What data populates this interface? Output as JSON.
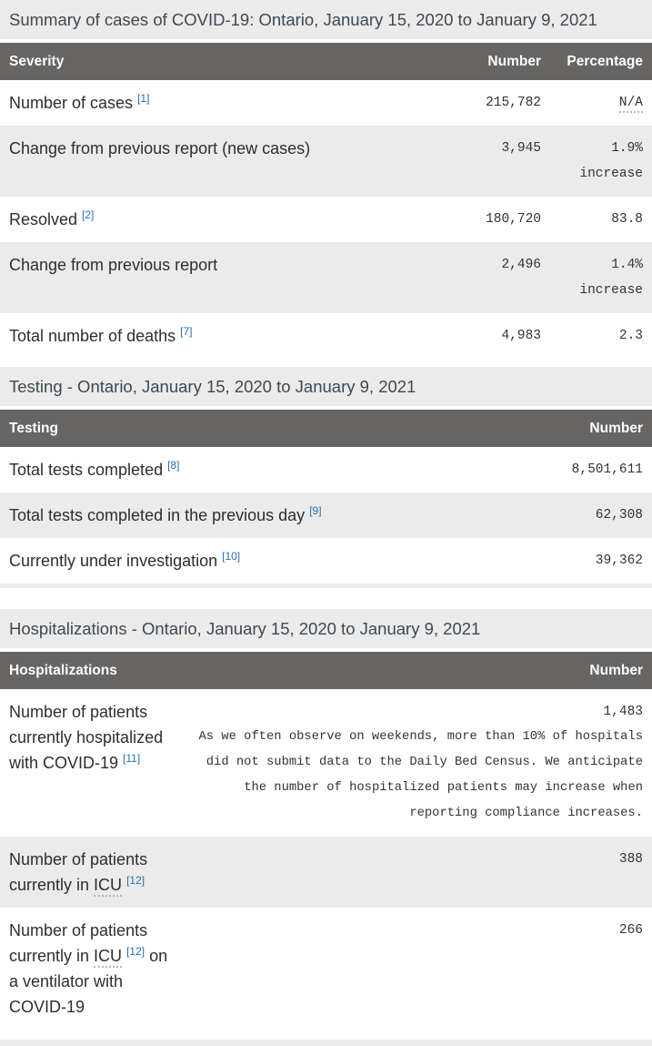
{
  "colors": {
    "header_bg": "#666564",
    "stripe_bg": "#ebebeb",
    "link_blue": "#2b6daf",
    "title_text": "#3d4953",
    "body_text": "#2e2e2e"
  },
  "sections": [
    {
      "id": "summary",
      "title": "Summary of cases of COVID-19: Ontario, January 15, 2020 to January 9, 2021",
      "header": {
        "label": "Severity",
        "columns": [
          "Number",
          "Percentage"
        ]
      },
      "columns": 3,
      "rows": [
        {
          "label": [
            {
              "text": "Number of cases "
            },
            {
              "sup": "[1]"
            }
          ],
          "number": "215,782",
          "percentage": {
            "value": "N/A",
            "abbr": true
          }
        },
        {
          "label": [
            {
              "text": "Change from previous report (new cases)"
            }
          ],
          "number": "3,945",
          "percentage": {
            "value": "1.9%",
            "sub": "increase"
          }
        },
        {
          "label": [
            {
              "text": "Resolved "
            },
            {
              "sup": "[2]"
            }
          ],
          "number": "180,720",
          "percentage": {
            "value": "83.8"
          }
        },
        {
          "label": [
            {
              "text": "Change from previous report"
            }
          ],
          "number": "2,496",
          "percentage": {
            "value": "1.4%",
            "sub": "increase"
          }
        },
        {
          "label": [
            {
              "text": "Total number of deaths "
            },
            {
              "sup": "[7]"
            }
          ],
          "number": "4,983",
          "percentage": {
            "value": "2.3"
          }
        }
      ]
    },
    {
      "id": "testing",
      "title": "Testing - Ontario, January 15, 2020 to January 9, 2021",
      "header": {
        "label": "Testing",
        "columns": [
          "Number"
        ]
      },
      "columns": 2,
      "rows": [
        {
          "label": [
            {
              "text": "Total tests completed "
            },
            {
              "sup": "[8]"
            }
          ],
          "number": "8,501,611"
        },
        {
          "label": [
            {
              "text": "Total tests completed in the previous day "
            },
            {
              "sup": "[9]"
            }
          ],
          "number": "62,308"
        },
        {
          "label": [
            {
              "text": "Currently under investigation "
            },
            {
              "sup": "[10]"
            }
          ],
          "number": "39,362"
        }
      ]
    },
    {
      "id": "hospitalizations",
      "title": "Hospitalizations - Ontario, January 15, 2020 to January 9, 2021",
      "header": {
        "label": "Hospitalizations",
        "columns": [
          "Number"
        ]
      },
      "columns": 2,
      "narrow_label": true,
      "rows": [
        {
          "label": [
            {
              "text": "Number of patients currently hospitalized with COVID-19 "
            },
            {
              "sup": "[11]"
            }
          ],
          "number": "1,483",
          "note": "As we often observe on weekends, more than 10% of hospitals did not submit data to the Daily Bed Census. We anticipate the number of hospitalized patients may increase when reporting compliance increases."
        },
        {
          "label": [
            {
              "text": "Number of patients currently in "
            },
            {
              "abbr": "ICU"
            },
            {
              "text": " "
            },
            {
              "sup": "[12]"
            }
          ],
          "number": "388"
        },
        {
          "label": [
            {
              "text": "Number of patients currently in "
            },
            {
              "abbr": "ICU"
            },
            {
              "text": " "
            },
            {
              "sup": "[12]"
            },
            {
              "text": " on a ventilator with COVID-19"
            }
          ],
          "number": "266"
        }
      ]
    }
  ]
}
